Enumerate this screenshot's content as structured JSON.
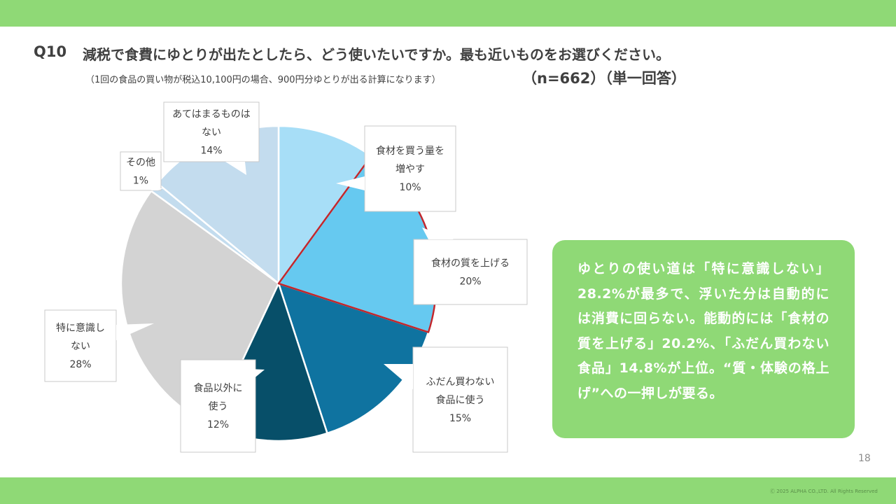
{
  "header": {
    "question_number": "Q10",
    "question_text": "減税で食費にゆとりが出たとしたら、どう使いたいですか。最も近いものをお選びください。",
    "note": "（1回の食品の買い物が税込10,100円の場合、900円分ゆとりが出る計算になります）",
    "sample": "（n=662）（単一回答）"
  },
  "chart_data": {
    "type": "pie",
    "title": "",
    "slices": [
      {
        "label_lines": [
          "食材を買う量を",
          "増やす"
        ],
        "value": 10,
        "value_label": "10%",
        "color": "#a7def7"
      },
      {
        "label_lines": [
          "食材の質を上げる"
        ],
        "value": 20,
        "value_label": "20%",
        "color": "#66c9f0",
        "highlight": true
      },
      {
        "label_lines": [
          "ふだん買わない",
          "食品に使う"
        ],
        "value": 15,
        "value_label": "15%",
        "color": "#0f73a0"
      },
      {
        "label_lines": [
          "食品以外に",
          "使う"
        ],
        "value": 12,
        "value_label": "12%",
        "color": "#074f69"
      },
      {
        "label_lines": [
          "特に意識し",
          "ない"
        ],
        "value": 28,
        "value_label": "28%",
        "color": "#d3d3d3"
      },
      {
        "label_lines": [
          "その他"
        ],
        "value": 1,
        "value_label": "1%",
        "color": "#c3dcee"
      },
      {
        "label_lines": [
          "あてはまるものは",
          "ない"
        ],
        "value": 14,
        "value_label": "14%",
        "color": "#c3dcee"
      }
    ],
    "highlight_color": "#c0272d"
  },
  "summary": {
    "text": "ゆとりの使い道は「特に意識しない」28.2%が最多で、浮いた分は自動的には消費に回らない。能動的には「食材の質を上げる」20.2%、「ふだん買わない食品」14.8%が上位。“質・体験の格上げ”への一押しが要る。"
  },
  "footer": {
    "page_number": "18",
    "copyright": "Ⓒ 2025 ALPHA CO.,LTD. All Rights Reserved"
  }
}
